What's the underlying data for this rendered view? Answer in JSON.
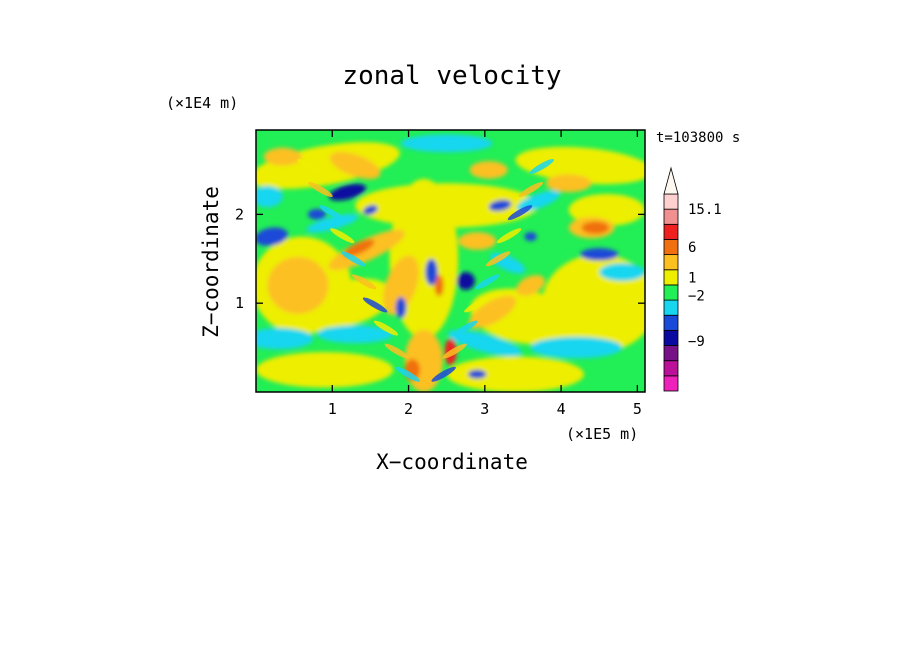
{
  "chart_data": {
    "type": "heatmap",
    "title": "zonal velocity",
    "time_label": "t=103800 s",
    "xlabel": "X−coordinate",
    "ylabel": "Z−coordinate",
    "x_units": "(×1E5 m)",
    "y_units": "(×1E4 m)",
    "xlim": [
      0,
      5.1
    ],
    "ylim": [
      0,
      2.95
    ],
    "x_ticks": [
      1,
      2,
      3,
      4,
      5
    ],
    "y_ticks": [
      1,
      2
    ],
    "colorbar": {
      "labels": [
        {
          "text": "15.1",
          "level": 15.1
        },
        {
          "text": "6",
          "level": 6
        },
        {
          "text": "1",
          "level": 1
        },
        {
          "text": "−2",
          "level": -2
        },
        {
          "text": "−9",
          "level": -9
        }
      ],
      "colors": [
        "#ee22bb",
        "#bb1199",
        "#771188",
        "#0a0aa0",
        "#1a4ad8",
        "#19d6f0",
        "#22ee55",
        "#eeee00",
        "#fcc020",
        "#f07010",
        "#ee2020",
        "#f09090",
        "#ffd0d0"
      ],
      "over_arrow": true
    },
    "colors": {
      "background": "#22ee55",
      "yellow": "#eeee00",
      "orange": "#fcc020",
      "dark_orange": "#f07010",
      "red": "#ee2020",
      "cyan": "#19d6f0",
      "blue": "#1a4ad8",
      "dark_blue": "#0a0aa0"
    }
  }
}
